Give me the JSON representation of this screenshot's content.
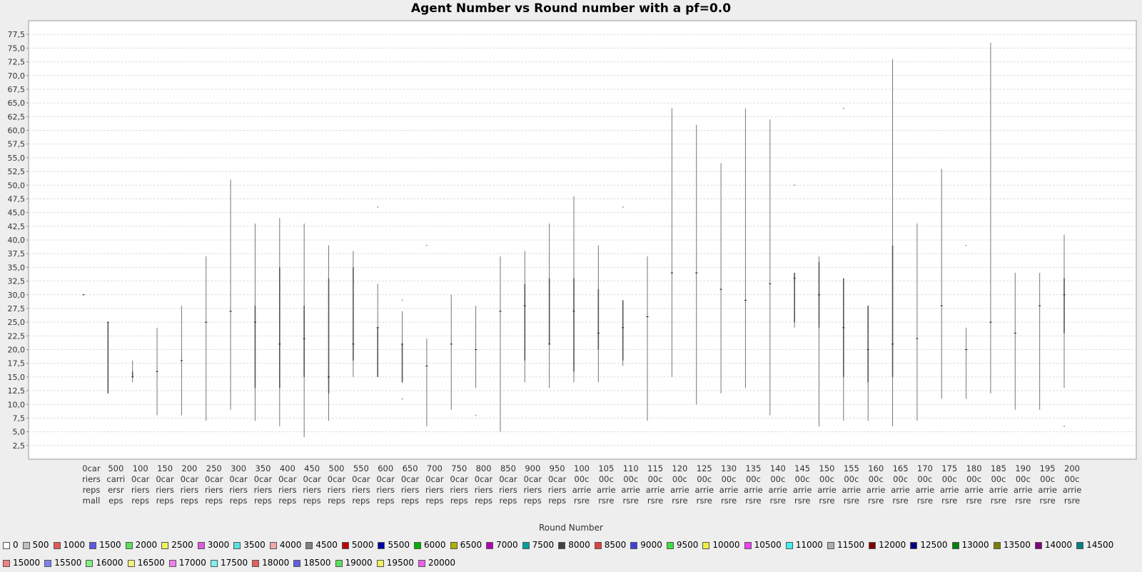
{
  "chart_data": {
    "type": "boxplot",
    "title": "Agent Number vs Round number with a pf=0.0",
    "xlabel": "Round Number",
    "ylabel": "",
    "ylim": [
      0,
      80
    ],
    "yticks": [
      "2,5",
      "5,0",
      "7,5",
      "10,0",
      "12,5",
      "15,0",
      "17,5",
      "20,0",
      "22,5",
      "25,0",
      "27,5",
      "30,0",
      "32,5",
      "35,0",
      "37,5",
      "40,0",
      "42,5",
      "45,0",
      "47,5",
      "50,0",
      "52,5",
      "55,0",
      "57,5",
      "60,0",
      "62,5",
      "65,0",
      "67,5",
      "70,0",
      "72,5",
      "75,0",
      "77,5"
    ],
    "grid": true,
    "legend_position": "bottom",
    "categories": [
      [
        "0car",
        "riers",
        "reps",
        "mall"
      ],
      [
        "500",
        "carri",
        "ersr",
        "eps"
      ],
      [
        "100",
        "0car",
        "riers",
        "reps"
      ],
      [
        "150",
        "0car",
        "riers",
        "reps"
      ],
      [
        "200",
        "0car",
        "riers",
        "reps"
      ],
      [
        "250",
        "0car",
        "riers",
        "reps"
      ],
      [
        "300",
        "0car",
        "riers",
        "reps"
      ],
      [
        "350",
        "0car",
        "riers",
        "reps"
      ],
      [
        "400",
        "0car",
        "riers",
        "reps"
      ],
      [
        "450",
        "0car",
        "riers",
        "reps"
      ],
      [
        "500",
        "0car",
        "riers",
        "reps"
      ],
      [
        "550",
        "0car",
        "riers",
        "reps"
      ],
      [
        "600",
        "0car",
        "riers",
        "reps"
      ],
      [
        "650",
        "0car",
        "riers",
        "reps"
      ],
      [
        "700",
        "0car",
        "riers",
        "reps"
      ],
      [
        "750",
        "0car",
        "riers",
        "reps"
      ],
      [
        "800",
        "0car",
        "riers",
        "reps"
      ],
      [
        "850",
        "0car",
        "riers",
        "reps"
      ],
      [
        "900",
        "0car",
        "riers",
        "reps"
      ],
      [
        "950",
        "0car",
        "riers",
        "reps"
      ],
      [
        "100",
        "00c",
        "arrie",
        "rsre"
      ],
      [
        "105",
        "00c",
        "arrie",
        "rsre"
      ],
      [
        "110",
        "00c",
        "arrie",
        "rsre"
      ],
      [
        "115",
        "00c",
        "arrie",
        "rsre"
      ],
      [
        "120",
        "00c",
        "arrie",
        "rsre"
      ],
      [
        "125",
        "00c",
        "arrie",
        "rsre"
      ],
      [
        "130",
        "00c",
        "arrie",
        "rsre"
      ],
      [
        "135",
        "00c",
        "arrie",
        "rsre"
      ],
      [
        "140",
        "00c",
        "arrie",
        "rsre"
      ],
      [
        "145",
        "00c",
        "arrie",
        "rsre"
      ],
      [
        "150",
        "00c",
        "arrie",
        "rsre"
      ],
      [
        "155",
        "00c",
        "arrie",
        "rsre"
      ],
      [
        "160",
        "00c",
        "arrie",
        "rsre"
      ],
      [
        "165",
        "00c",
        "arrie",
        "rsre"
      ],
      [
        "170",
        "00c",
        "arrie",
        "rsre"
      ],
      [
        "175",
        "00c",
        "arrie",
        "rsre"
      ],
      [
        "180",
        "00c",
        "arrie",
        "rsre"
      ],
      [
        "185",
        "00c",
        "arrie",
        "rsre"
      ],
      [
        "190",
        "00c",
        "arrie",
        "rsre"
      ],
      [
        "195",
        "00c",
        "arrie",
        "rsre"
      ],
      [
        "200",
        "00c",
        "arrie",
        "rsre"
      ]
    ],
    "boxes": [
      {
        "min": 30,
        "q1": 30,
        "median": 30,
        "q3": 30,
        "max": 30,
        "outliers": []
      },
      {
        "min": 12,
        "q1": 12,
        "median": 25,
        "q3": 25,
        "max": 25,
        "outliers": []
      },
      {
        "min": 14,
        "q1": 15,
        "median": 15,
        "q3": 16,
        "max": 18,
        "outliers": []
      },
      {
        "min": 8,
        "q1": 16,
        "median": 16,
        "q3": 16,
        "max": 24,
        "outliers": []
      },
      {
        "min": 8,
        "q1": 18,
        "median": 18,
        "q3": 18,
        "max": 28,
        "outliers": []
      },
      {
        "min": 7,
        "q1": 25,
        "median": 25,
        "q3": 25,
        "max": 37,
        "outliers": []
      },
      {
        "min": 9,
        "q1": 27,
        "median": 27,
        "q3": 27,
        "max": 51,
        "outliers": []
      },
      {
        "min": 7,
        "q1": 13,
        "median": 25,
        "q3": 28,
        "max": 43,
        "outliers": []
      },
      {
        "min": 6,
        "q1": 13,
        "median": 21,
        "q3": 35,
        "max": 44,
        "outliers": []
      },
      {
        "min": 4,
        "q1": 15,
        "median": 22,
        "q3": 28,
        "max": 43,
        "outliers": []
      },
      {
        "min": 7,
        "q1": 12,
        "median": 15,
        "q3": 33,
        "max": 39,
        "outliers": []
      },
      {
        "min": 15,
        "q1": 18,
        "median": 21,
        "q3": 35,
        "max": 38,
        "outliers": []
      },
      {
        "min": 15,
        "q1": 15,
        "median": 24,
        "q3": 24,
        "max": 32,
        "outliers": [
          46
        ]
      },
      {
        "min": 14,
        "q1": 14,
        "median": 21,
        "q3": 21,
        "max": 27,
        "outliers": [
          11,
          29
        ]
      },
      {
        "min": 6,
        "q1": 17,
        "median": 17,
        "q3": 17,
        "max": 22,
        "outliers": [
          39
        ]
      },
      {
        "min": 9,
        "q1": 21,
        "median": 21,
        "q3": 21,
        "max": 30,
        "outliers": []
      },
      {
        "min": 13,
        "q1": 20,
        "median": 20,
        "q3": 20,
        "max": 28,
        "outliers": [
          8
        ]
      },
      {
        "min": 5,
        "q1": 27,
        "median": 27,
        "q3": 27,
        "max": 37,
        "outliers": []
      },
      {
        "min": 14,
        "q1": 18,
        "median": 28,
        "q3": 32,
        "max": 38,
        "outliers": []
      },
      {
        "min": 13,
        "q1": 21,
        "median": 21,
        "q3": 33,
        "max": 43,
        "outliers": []
      },
      {
        "min": 14,
        "q1": 16,
        "median": 27,
        "q3": 33,
        "max": 48,
        "outliers": []
      },
      {
        "min": 14,
        "q1": 20,
        "median": 23,
        "q3": 31,
        "max": 39,
        "outliers": []
      },
      {
        "min": 17,
        "q1": 18,
        "median": 24,
        "q3": 29,
        "max": 29,
        "outliers": [
          46
        ]
      },
      {
        "min": 7,
        "q1": 26,
        "median": 26,
        "q3": 26,
        "max": 37,
        "outliers": []
      },
      {
        "min": 15,
        "q1": 34,
        "median": 34,
        "q3": 34,
        "max": 64,
        "outliers": []
      },
      {
        "min": 10,
        "q1": 34,
        "median": 34,
        "q3": 34,
        "max": 61,
        "outliers": []
      },
      {
        "min": 12,
        "q1": 31,
        "median": 31,
        "q3": 31,
        "max": 54,
        "outliers": []
      },
      {
        "min": 13,
        "q1": 29,
        "median": 29,
        "q3": 29,
        "max": 64,
        "outliers": []
      },
      {
        "min": 8,
        "q1": 32,
        "median": 32,
        "q3": 32,
        "max": 62,
        "outliers": []
      },
      {
        "min": 24,
        "q1": 25,
        "median": 33,
        "q3": 34,
        "max": 34,
        "outliers": [
          50
        ]
      },
      {
        "min": 6,
        "q1": 24,
        "median": 30,
        "q3": 36,
        "max": 37,
        "outliers": []
      },
      {
        "min": 7,
        "q1": 15,
        "median": 24,
        "q3": 33,
        "max": 33,
        "outliers": [
          64
        ]
      },
      {
        "min": 7,
        "q1": 14,
        "median": 20,
        "q3": 28,
        "max": 28,
        "outliers": []
      },
      {
        "min": 6,
        "q1": 15,
        "median": 21,
        "q3": 39,
        "max": 73,
        "outliers": []
      },
      {
        "min": 7,
        "q1": 22,
        "median": 22,
        "q3": 22,
        "max": 43,
        "outliers": []
      },
      {
        "min": 11,
        "q1": 28,
        "median": 28,
        "q3": 28,
        "max": 53,
        "outliers": []
      },
      {
        "min": 11,
        "q1": 20,
        "median": 20,
        "q3": 20,
        "max": 24,
        "outliers": [
          39
        ]
      },
      {
        "min": 12,
        "q1": 25,
        "median": 25,
        "q3": 25,
        "max": 76,
        "outliers": []
      },
      {
        "min": 9,
        "q1": 23,
        "median": 23,
        "q3": 23,
        "max": 34,
        "outliers": []
      },
      {
        "min": 9,
        "q1": 28,
        "median": 28,
        "q3": 28,
        "max": 34,
        "outliers": []
      },
      {
        "min": 13,
        "q1": 23,
        "median": 30,
        "q3": 33,
        "max": 41,
        "outliers": [
          6
        ]
      }
    ]
  },
  "legend": [
    {
      "label": "0",
      "color": "#ffffff"
    },
    {
      "label": "500",
      "color": "#c0c0c0"
    },
    {
      "label": "1000",
      "color": "#e05a5a"
    },
    {
      "label": "1500",
      "color": "#5a5ae0"
    },
    {
      "label": "2000",
      "color": "#5ae05a"
    },
    {
      "label": "2500",
      "color": "#f0f05a"
    },
    {
      "label": "3000",
      "color": "#e05ae0"
    },
    {
      "label": "3500",
      "color": "#5ae0e0"
    },
    {
      "label": "4000",
      "color": "#f0a8a8"
    },
    {
      "label": "4500",
      "color": "#808080"
    },
    {
      "label": "5000",
      "color": "#c00000"
    },
    {
      "label": "5500",
      "color": "#0000a0"
    },
    {
      "label": "6000",
      "color": "#00b000"
    },
    {
      "label": "6500",
      "color": "#b0b000"
    },
    {
      "label": "7000",
      "color": "#b000b0"
    },
    {
      "label": "7500",
      "color": "#00a0a0"
    },
    {
      "label": "8000",
      "color": "#404040"
    },
    {
      "label": "8500",
      "color": "#e04040"
    },
    {
      "label": "9000",
      "color": "#4040e0"
    },
    {
      "label": "9500",
      "color": "#40e040"
    },
    {
      "label": "10000",
      "color": "#f0f040"
    },
    {
      "label": "10500",
      "color": "#f040f0"
    },
    {
      "label": "11000",
      "color": "#40f0f0"
    },
    {
      "label": "11500",
      "color": "#b0b0b0"
    },
    {
      "label": "12000",
      "color": "#800000"
    },
    {
      "label": "12500",
      "color": "#000080"
    },
    {
      "label": "13000",
      "color": "#008000"
    },
    {
      "label": "13500",
      "color": "#808000"
    },
    {
      "label": "14000",
      "color": "#800080"
    },
    {
      "label": "14500",
      "color": "#008080"
    },
    {
      "label": "15000",
      "color": "#f08080"
    },
    {
      "label": "15500",
      "color": "#8080f0"
    },
    {
      "label": "16000",
      "color": "#80f080"
    },
    {
      "label": "16500",
      "color": "#f0f080"
    },
    {
      "label": "17000",
      "color": "#f080f0"
    },
    {
      "label": "17500",
      "color": "#80f0f0"
    },
    {
      "label": "18000",
      "color": "#e06060"
    },
    {
      "label": "18500",
      "color": "#6060e0"
    },
    {
      "label": "19000",
      "color": "#60e060"
    },
    {
      "label": "19500",
      "color": "#f0f060"
    },
    {
      "label": "20000",
      "color": "#f060f0"
    }
  ]
}
